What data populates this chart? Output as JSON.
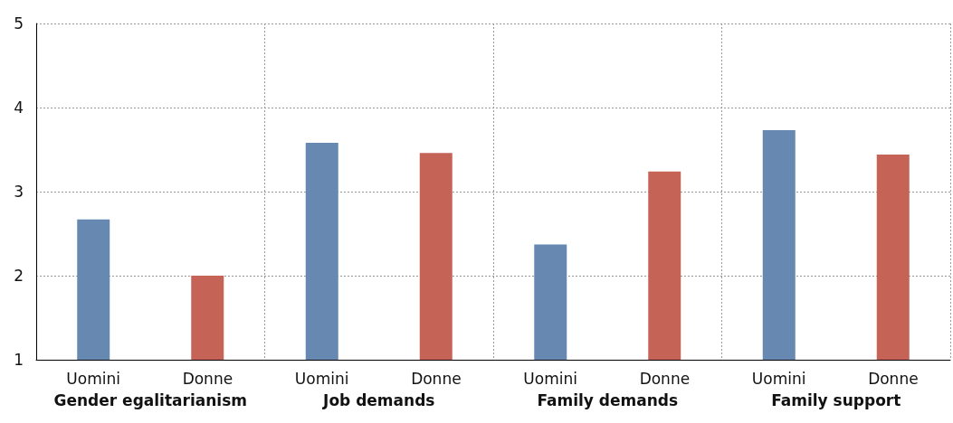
{
  "chart_data": {
    "type": "bar",
    "categories": [
      "Gender egalitarianism",
      "Job demands",
      "Family demands",
      "Family support"
    ],
    "series": [
      {
        "name": "Uomini",
        "color": "#6788b1",
        "values": [
          2.67,
          3.58,
          2.37,
          3.73
        ]
      },
      {
        "name": "Donne",
        "color": "#c56357",
        "values": [
          2.0,
          3.46,
          3.24,
          3.44
        ]
      }
    ],
    "ylim": [
      1,
      5
    ],
    "yticks": [
      1,
      2,
      3,
      4,
      5
    ],
    "grid": true,
    "legend": false
  }
}
